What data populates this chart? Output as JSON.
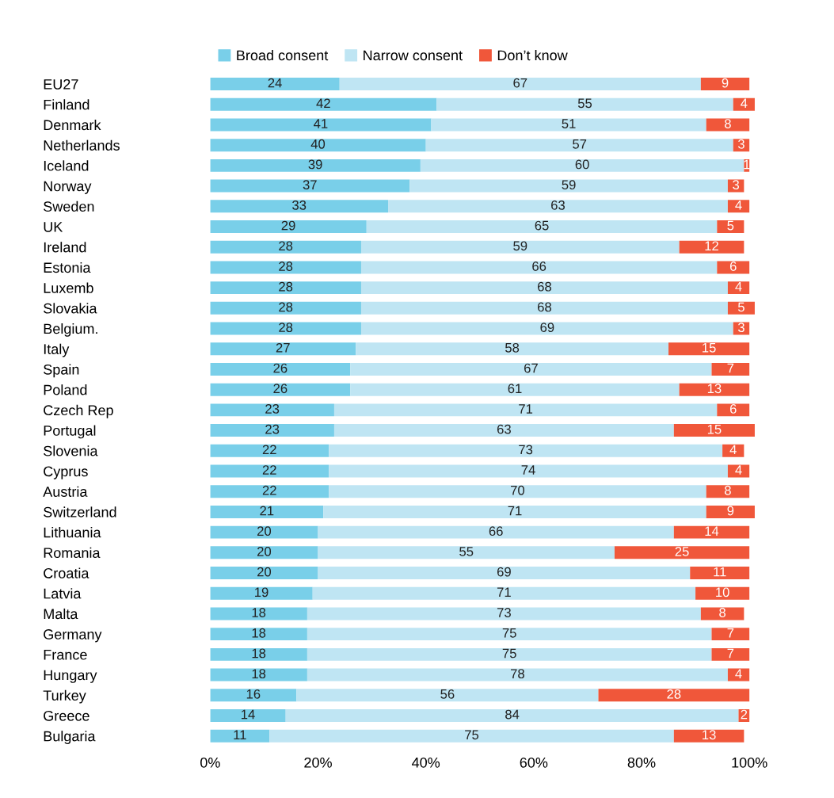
{
  "chart_data": {
    "type": "bar",
    "orientation": "horizontal",
    "stacked": true,
    "categories": [
      "EU27",
      "Finland",
      "Denmark",
      "Netherlands",
      "Iceland",
      "Norway",
      "Sweden",
      "UK",
      "Ireland",
      "Estonia",
      "Luxemb",
      "Slovakia",
      "Belgium.",
      "Italy",
      "Spain",
      "Poland",
      "Czech Rep",
      "Portugal",
      "Slovenia",
      "Cyprus",
      "Austria",
      "Switzerland",
      "Lithuania",
      "Romania",
      "Croatia",
      "Latvia",
      "Malta",
      "Germany",
      "France",
      "Hungary",
      "Turkey",
      "Greece",
      "Bulgaria"
    ],
    "series": [
      {
        "name": "Broad consent",
        "color": "#79cfe9",
        "values": [
          24,
          42,
          41,
          40,
          39,
          37,
          33,
          29,
          28,
          28,
          28,
          28,
          28,
          27,
          26,
          26,
          23,
          23,
          22,
          22,
          22,
          21,
          20,
          20,
          20,
          19,
          18,
          18,
          18,
          18,
          16,
          14,
          11
        ]
      },
      {
        "name": "Narrow consent",
        "color": "#bfe5f3",
        "values": [
          67,
          55,
          51,
          57,
          60,
          59,
          63,
          65,
          59,
          66,
          68,
          68,
          69,
          58,
          67,
          61,
          71,
          63,
          73,
          74,
          70,
          71,
          66,
          55,
          69,
          71,
          73,
          75,
          75,
          78,
          56,
          84,
          75
        ]
      },
      {
        "name": "Don’t know",
        "color": "#f0573a",
        "values": [
          9,
          4,
          8,
          3,
          1,
          3,
          4,
          5,
          12,
          6,
          4,
          5,
          3,
          15,
          7,
          13,
          6,
          15,
          4,
          4,
          8,
          9,
          14,
          25,
          11,
          10,
          8,
          7,
          7,
          4,
          28,
          2,
          13
        ]
      }
    ],
    "xlim": [
      0,
      101
    ],
    "xticks": [
      {
        "value": 0,
        "label": "0%"
      },
      {
        "value": 20,
        "label": "20%"
      },
      {
        "value": 40,
        "label": "40%"
      },
      {
        "value": 60,
        "label": "60%"
      },
      {
        "value": 80,
        "label": "80%"
      },
      {
        "value": 100,
        "label": "100%"
      }
    ],
    "data_labels": true,
    "legend": "top",
    "grid": false
  }
}
